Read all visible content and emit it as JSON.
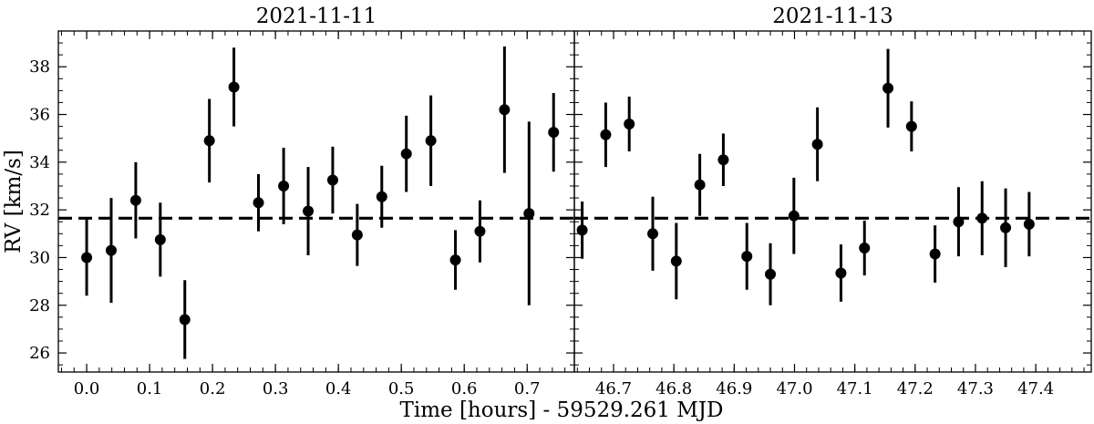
{
  "chart_data": {
    "type": "scatter",
    "xlabel": "Time [hours] - 59529.261 MJD",
    "ylabel": "RV [km/s]",
    "ylim": [
      25.2,
      39.5
    ],
    "yticks": [
      "26",
      "28",
      "30",
      "32",
      "34",
      "36",
      "38"
    ],
    "reference_line": {
      "style": "dashed",
      "value": 31.65
    },
    "marker_color": "#000000",
    "panels": [
      {
        "title": "2021-11-11",
        "xlim": [
          -0.045,
          0.775
        ],
        "xticks": [
          "0.0",
          "0.1",
          "0.2",
          "0.3",
          "0.4",
          "0.5",
          "0.6",
          "0.7"
        ],
        "points": [
          {
            "x": 0.0,
            "y": 30.0,
            "err": 1.6
          },
          {
            "x": 0.039,
            "y": 30.3,
            "err": 2.2
          },
          {
            "x": 0.078,
            "y": 32.4,
            "err": 1.6
          },
          {
            "x": 0.117,
            "y": 30.75,
            "err": 1.55
          },
          {
            "x": 0.156,
            "y": 27.4,
            "err": 1.65
          },
          {
            "x": 0.195,
            "y": 34.9,
            "err": 1.75
          },
          {
            "x": 0.234,
            "y": 37.15,
            "err": 1.65
          },
          {
            "x": 0.273,
            "y": 32.3,
            "err": 1.2
          },
          {
            "x": 0.313,
            "y": 33.0,
            "err": 1.6
          },
          {
            "x": 0.352,
            "y": 31.95,
            "err": 1.85
          },
          {
            "x": 0.391,
            "y": 33.25,
            "err": 1.4
          },
          {
            "x": 0.43,
            "y": 30.95,
            "err": 1.3
          },
          {
            "x": 0.469,
            "y": 32.55,
            "err": 1.3
          },
          {
            "x": 0.508,
            "y": 34.35,
            "err": 1.6
          },
          {
            "x": 0.547,
            "y": 34.9,
            "err": 1.9
          },
          {
            "x": 0.586,
            "y": 29.9,
            "err": 1.25
          },
          {
            "x": 0.625,
            "y": 31.1,
            "err": 1.3
          },
          {
            "x": 0.664,
            "y": 36.2,
            "err": 2.65
          },
          {
            "x": 0.703,
            "y": 31.85,
            "err": 3.85
          },
          {
            "x": 0.742,
            "y": 35.25,
            "err": 1.65
          }
        ]
      },
      {
        "title": "2021-11-13",
        "xlim": [
          46.635,
          47.492
        ],
        "xticks": [
          "46.7",
          "46.8",
          "46.9",
          "47.0",
          "47.1",
          "47.2",
          "47.3",
          "47.4"
        ],
        "points": [
          {
            "x": 46.648,
            "y": 31.15,
            "err": 1.2
          },
          {
            "x": 46.687,
            "y": 35.15,
            "err": 1.35
          },
          {
            "x": 46.726,
            "y": 35.6,
            "err": 1.15
          },
          {
            "x": 46.765,
            "y": 31.0,
            "err": 1.55
          },
          {
            "x": 46.804,
            "y": 29.85,
            "err": 1.6
          },
          {
            "x": 46.843,
            "y": 33.05,
            "err": 1.3
          },
          {
            "x": 46.882,
            "y": 34.1,
            "err": 1.1
          },
          {
            "x": 46.921,
            "y": 30.05,
            "err": 1.4
          },
          {
            "x": 46.96,
            "y": 29.3,
            "err": 1.3
          },
          {
            "x": 46.999,
            "y": 31.75,
            "err": 1.6
          },
          {
            "x": 47.038,
            "y": 34.75,
            "err": 1.55
          },
          {
            "x": 47.077,
            "y": 29.35,
            "err": 1.2
          },
          {
            "x": 47.116,
            "y": 30.4,
            "err": 1.15
          },
          {
            "x": 47.155,
            "y": 37.1,
            "err": 1.65
          },
          {
            "x": 47.194,
            "y": 35.5,
            "err": 1.05
          },
          {
            "x": 47.233,
            "y": 30.15,
            "err": 1.2
          },
          {
            "x": 47.272,
            "y": 31.5,
            "err": 1.45
          },
          {
            "x": 47.311,
            "y": 31.65,
            "err": 1.55
          },
          {
            "x": 47.35,
            "y": 31.25,
            "err": 1.65
          },
          {
            "x": 47.389,
            "y": 31.4,
            "err": 1.35
          }
        ]
      }
    ]
  }
}
